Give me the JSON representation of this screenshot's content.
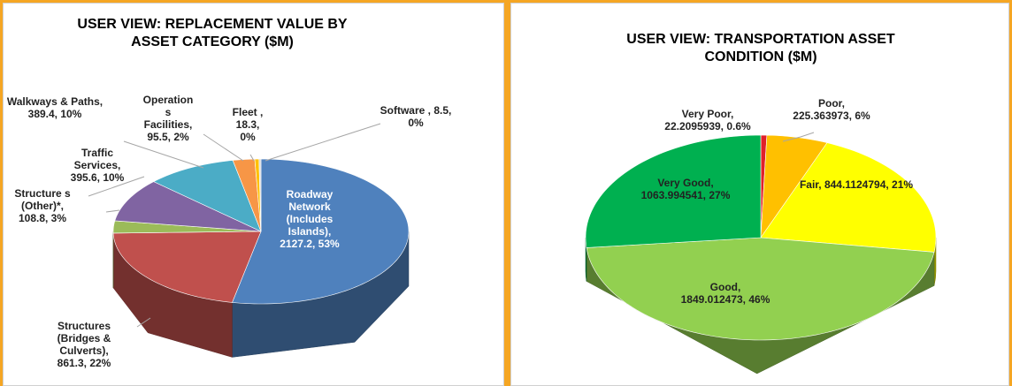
{
  "chart_data": [
    {
      "type": "pie",
      "title": "USER VIEW: REPLACEMENT VALUE BY ASSET CATEGORY ($M)",
      "values": [
        2127.2,
        861.3,
        108.8,
        389.4,
        395.6,
        95.5,
        18.3,
        8.5
      ],
      "value_labels": [
        "Roadway Network (Includes Islands), 2127.2, 53%",
        "Structures (Bridges & Culverts), 861.3, 22%",
        "Structure s (Other)*, 108.8, 3%",
        "Walkways & Paths, 389.4, 10%",
        "Traffic Services, 395.6, 10%",
        "Operation s Facilities, 95.5, 2%",
        "Fleet , 18.3, 0%",
        "Software , 8.5, 0%"
      ],
      "colors": [
        "#4f81bd",
        "#c0504d",
        "#9bbb59",
        "#8064a2",
        "#4bacc6",
        "#f79646",
        "#ffc000",
        "#d9d9d9"
      ]
    },
    {
      "type": "pie",
      "title": "USER VIEW: TRANSPORTATION ASSET CONDITION ($M)",
      "values": [
        22.2095939,
        225.363973,
        844.1124794,
        1849.012473,
        1063.994541
      ],
      "value_labels": [
        "Very Poor, 22.2095939, 0.6%",
        "Poor, 225.363973, 6%",
        "Fair, 844.1124794, 21%",
        "Good, 1849.012473, 46%",
        "Very Good, 1063.994541, 27%"
      ],
      "colors": [
        "#e0202a",
        "#ffc000",
        "#ffff00",
        "#92d050",
        "#00b050"
      ]
    }
  ]
}
